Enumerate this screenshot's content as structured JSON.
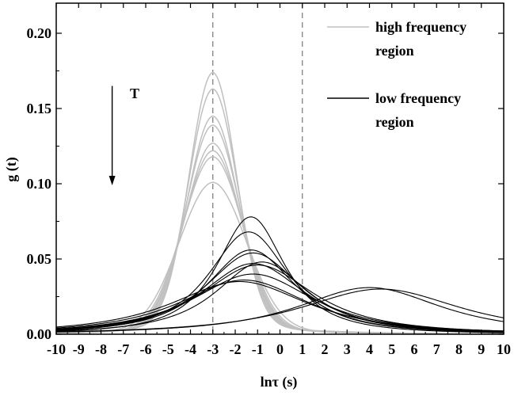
{
  "chart_data": {
    "type": "line",
    "xlabel": "lnτ (s)",
    "ylabel": "g (t)",
    "xlim": [
      -10,
      10
    ],
    "ylim": [
      0,
      0.22
    ],
    "xticks": [
      -10,
      -9,
      -8,
      -7,
      -6,
      -5,
      -4,
      -3,
      -2,
      -1,
      0,
      1,
      2,
      3,
      4,
      5,
      6,
      7,
      8,
      9,
      10
    ],
    "yticks": [
      0.0,
      0.05,
      0.1,
      0.15,
      0.2
    ],
    "ytick_labels": [
      "0.00",
      "0.05",
      "0.10",
      "0.15",
      "0.20"
    ],
    "vlines": [
      -3,
      1
    ],
    "annotation": {
      "text": "T",
      "arrow": "down",
      "x": -7.5,
      "y_from": 0.165,
      "y_to": 0.1
    },
    "legend_position": "top-right",
    "legend": [
      {
        "label_line1": "high frequency",
        "label_line2": "region",
        "color": "#c0c0c0"
      },
      {
        "label_line1": "low frequency",
        "label_line2": "region",
        "color": "#000000"
      }
    ],
    "series_high": [
      {
        "center": -3.0,
        "peak": 0.165,
        "width": 1.05,
        "tail": 0.009
      },
      {
        "center": -3.0,
        "peak": 0.155,
        "width": 1.1,
        "tail": 0.008
      },
      {
        "center": -3.0,
        "peak": 0.137,
        "width": 1.15,
        "tail": 0.008
      },
      {
        "center": -3.0,
        "peak": 0.132,
        "width": 1.2,
        "tail": 0.007
      },
      {
        "center": -3.0,
        "peak": 0.12,
        "width": 1.25,
        "tail": 0.007
      },
      {
        "center": -3.0,
        "peak": 0.116,
        "width": 1.3,
        "tail": 0.006
      },
      {
        "center": -3.0,
        "peak": 0.112,
        "width": 1.35,
        "tail": 0.006
      },
      {
        "center": -3.0,
        "peak": 0.096,
        "width": 1.5,
        "tail": 0.005
      }
    ],
    "series_low": [
      {
        "center": -1.3,
        "peak": 0.078,
        "width": 1.7
      },
      {
        "center": -1.4,
        "peak": 0.068,
        "width": 2.0
      },
      {
        "center": -1.3,
        "peak": 0.056,
        "width": 2.2
      },
      {
        "center": -1.2,
        "peak": 0.054,
        "width": 2.4
      },
      {
        "center": -0.8,
        "peak": 0.048,
        "width": 2.3
      },
      {
        "center": -1.2,
        "peak": 0.047,
        "width": 2.6
      },
      {
        "center": -1.0,
        "peak": 0.046,
        "width": 2.8
      },
      {
        "center": -1.2,
        "peak": 0.04,
        "width": 3.0
      },
      {
        "center": -1.6,
        "peak": 0.036,
        "width": 3.2
      },
      {
        "center": -1.8,
        "peak": 0.035,
        "width": 3.4
      },
      {
        "center": 4.0,
        "peak": 0.031,
        "width": 3.6
      },
      {
        "center": 4.5,
        "peak": 0.03,
        "width": 4.0
      }
    ]
  }
}
